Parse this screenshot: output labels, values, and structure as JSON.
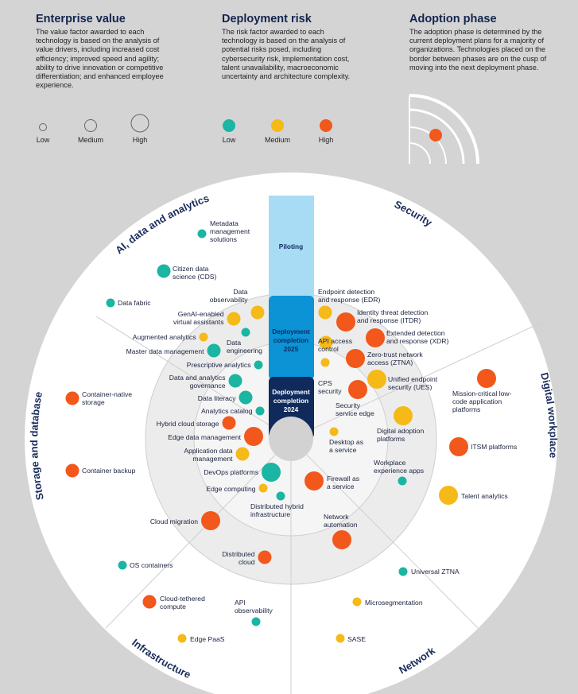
{
  "legend": {
    "value": {
      "title": "Enterprise value",
      "description": "The value factor awarded to each technology is based on the analysis of value drivers, including increased cost efficiency; improved speed and agility; ability to drive innovation or competitive differentiation; and enhanced employee experience.",
      "levels": [
        "Low",
        "Medium",
        "High"
      ]
    },
    "risk": {
      "title": "Deployment risk",
      "description": "The risk factor awarded to each technology is based on the analysis of potential risks posed, including cybersecurity risk, implementation cost, talent unavailability, macroeconomic uncertainty and architecture complexity.",
      "levels": [
        "Low",
        "Medium",
        "High"
      ]
    },
    "phase": {
      "title": "Adoption phase",
      "description": "The adoption phase is determined by the current deployment plans for a majority of organizations. Technologies placed on the border between phases are on the cusp of moving into the next deployment phase."
    }
  },
  "colors": {
    "low": "#1ab5a3",
    "medium": "#f5b918",
    "high": "#f2571b",
    "navy": "#0f2a5b",
    "blue": "#0b93d6",
    "lightblue": "#a8dcf4"
  },
  "phases": [
    "Piloting",
    "Deployment completion 2025",
    "Deployment completion 2024"
  ],
  "sectors": [
    "AI, data and analytics",
    "Security",
    "Digital workplace",
    "Network",
    "Infrastructure",
    "Storage and database"
  ],
  "technologies": [
    {
      "name": "Metadata management solutions",
      "risk": "low",
      "value": "low"
    },
    {
      "name": "Citizen data science (CDS)",
      "risk": "low",
      "value": "medium"
    },
    {
      "name": "Data fabric",
      "risk": "low",
      "value": "low"
    },
    {
      "name": "Data observability",
      "risk": "medium",
      "value": "medium"
    },
    {
      "name": "GenAI-enabled virtual assistants",
      "risk": "medium",
      "value": "medium"
    },
    {
      "name": "Augmented analytics",
      "risk": "medium",
      "value": "low"
    },
    {
      "name": "Data engineering",
      "risk": "low",
      "value": "low"
    },
    {
      "name": "Master data management",
      "risk": "low",
      "value": "medium"
    },
    {
      "name": "Prescriptive analytics",
      "risk": "low",
      "value": "low"
    },
    {
      "name": "Data and analytics governance",
      "risk": "low",
      "value": "medium"
    },
    {
      "name": "Data literacy",
      "risk": "low",
      "value": "medium"
    },
    {
      "name": "Analytics catalog",
      "risk": "low",
      "value": "low"
    },
    {
      "name": "Hybrid cloud storage",
      "risk": "high",
      "value": "medium"
    },
    {
      "name": "Edge data management",
      "risk": "high",
      "value": "high"
    },
    {
      "name": "Application data management",
      "risk": "medium",
      "value": "medium"
    },
    {
      "name": "DevOps platforms",
      "risk": "low",
      "value": "high"
    },
    {
      "name": "Edge computing",
      "risk": "medium",
      "value": "low"
    },
    {
      "name": "Distributed hybrid infrastructure",
      "risk": "low",
      "value": "low"
    },
    {
      "name": "Container-native storage",
      "risk": "high",
      "value": "medium"
    },
    {
      "name": "Container backup",
      "risk": "high",
      "value": "medium"
    },
    {
      "name": "Cloud migration",
      "risk": "high",
      "value": "high"
    },
    {
      "name": "Distributed cloud",
      "risk": "high",
      "value": "medium"
    },
    {
      "name": "OS containers",
      "risk": "low",
      "value": "low"
    },
    {
      "name": "Cloud-tethered compute",
      "risk": "high",
      "value": "medium"
    },
    {
      "name": "API observability",
      "risk": "low",
      "value": "low"
    },
    {
      "name": "Edge PaaS",
      "risk": "medium",
      "value": "low"
    },
    {
      "name": "Endpoint detection and response (EDR)",
      "risk": "medium",
      "value": "medium"
    },
    {
      "name": "Identity threat detection and response (ITDR)",
      "risk": "high",
      "value": "high"
    },
    {
      "name": "API access control",
      "risk": "medium",
      "value": "medium"
    },
    {
      "name": "Extended detection and response (XDR)",
      "risk": "high",
      "value": "high"
    },
    {
      "name": "Zero-trust network access (ZTNA)",
      "risk": "high",
      "value": "high"
    },
    {
      "name": "CPS security",
      "risk": "medium",
      "value": "low"
    },
    {
      "name": "Unified endpoint security (UES)",
      "risk": "medium",
      "value": "high"
    },
    {
      "name": "Security service edge",
      "risk": "high",
      "value": "high"
    },
    {
      "name": "Mission-critical low-code application platforms",
      "risk": "high",
      "value": "high"
    },
    {
      "name": "Digital adoption platforms",
      "risk": "medium",
      "value": "high"
    },
    {
      "name": "Desktop as a service",
      "risk": "medium",
      "value": "low"
    },
    {
      "name": "ITSM platforms",
      "risk": "high",
      "value": "high"
    },
    {
      "name": "Workplace experience apps",
      "risk": "low",
      "value": "low"
    },
    {
      "name": "Talent analytics",
      "risk": "medium",
      "value": "high"
    },
    {
      "name": "Firewall as a service",
      "risk": "high",
      "value": "high"
    },
    {
      "name": "Network automation",
      "risk": "high",
      "value": "high"
    },
    {
      "name": "Universal ZTNA",
      "risk": "low",
      "value": "low"
    },
    {
      "name": "Microsegmentation",
      "risk": "medium",
      "value": "low"
    },
    {
      "name": "SASE",
      "risk": "medium",
      "value": "low"
    }
  ]
}
